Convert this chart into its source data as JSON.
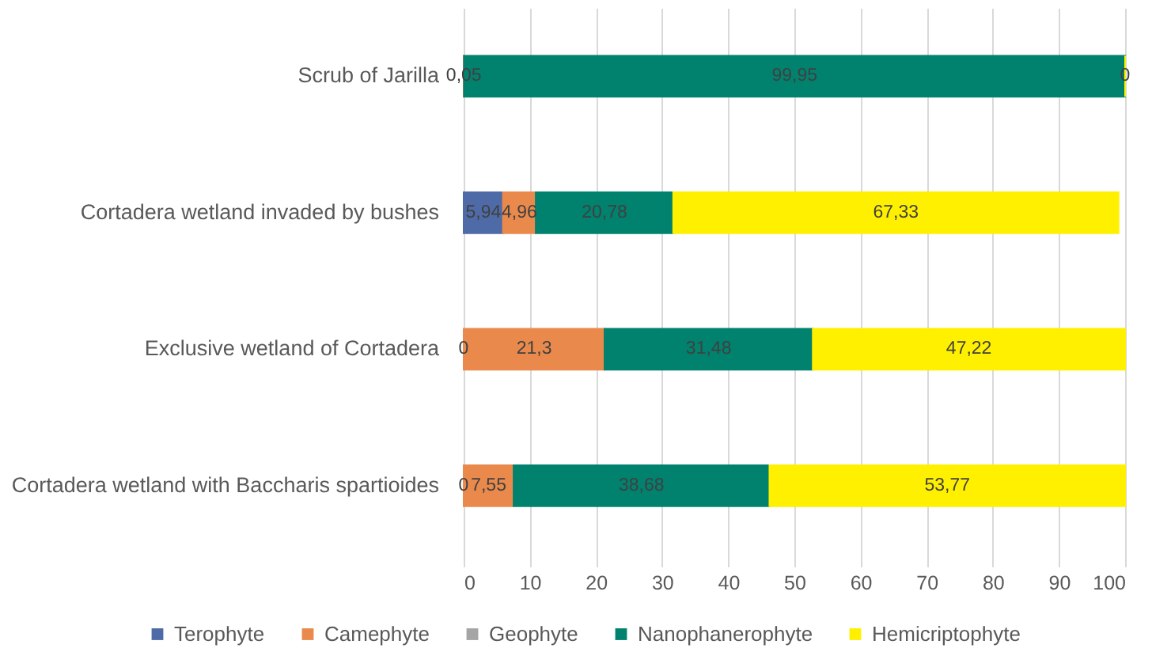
{
  "chart_data": {
    "type": "bar",
    "orientation": "horizontal",
    "stacked": true,
    "categories": [
      "Scrub of Jarilla",
      "Cortadera wetland invaded by bushes",
      "Exclusive wetland of Cortadera",
      "Cortadera wetland with Baccharis spartioides"
    ],
    "series": [
      {
        "name": "Terophyte",
        "color": "#4e6ba8",
        "values": [
          null,
          5.94,
          0,
          0
        ],
        "value_labels": [
          null,
          "5,94",
          "0",
          "0"
        ]
      },
      {
        "name": "Camephyte",
        "color": "#e98a4c",
        "values": [
          0.05,
          4.96,
          21.3,
          7.55
        ],
        "value_labels": [
          "0,05",
          "4,96",
          "21,3",
          "7,55"
        ]
      },
      {
        "name": "Geophyte",
        "color": "#a5a5a5",
        "values": [
          null,
          null,
          null,
          null
        ]
      },
      {
        "name": "Nanophanerophyte",
        "color": "#00826f",
        "values": [
          99.95,
          20.78,
          31.48,
          38.68
        ],
        "value_labels": [
          "99,95",
          "20,78",
          "31,48",
          "38,68"
        ]
      },
      {
        "name": "Hemicriptophyte",
        "color": "#fff000",
        "values": [
          0,
          67.33,
          47.22,
          53.77
        ],
        "value_labels": [
          "0",
          "67,33",
          "47,22",
          "53,77"
        ]
      }
    ],
    "xlim": [
      0,
      100
    ],
    "xticks": [
      0,
      10,
      20,
      30,
      40,
      50,
      60,
      70,
      80,
      90,
      100
    ],
    "grid": "x",
    "legend": "bottom"
  }
}
